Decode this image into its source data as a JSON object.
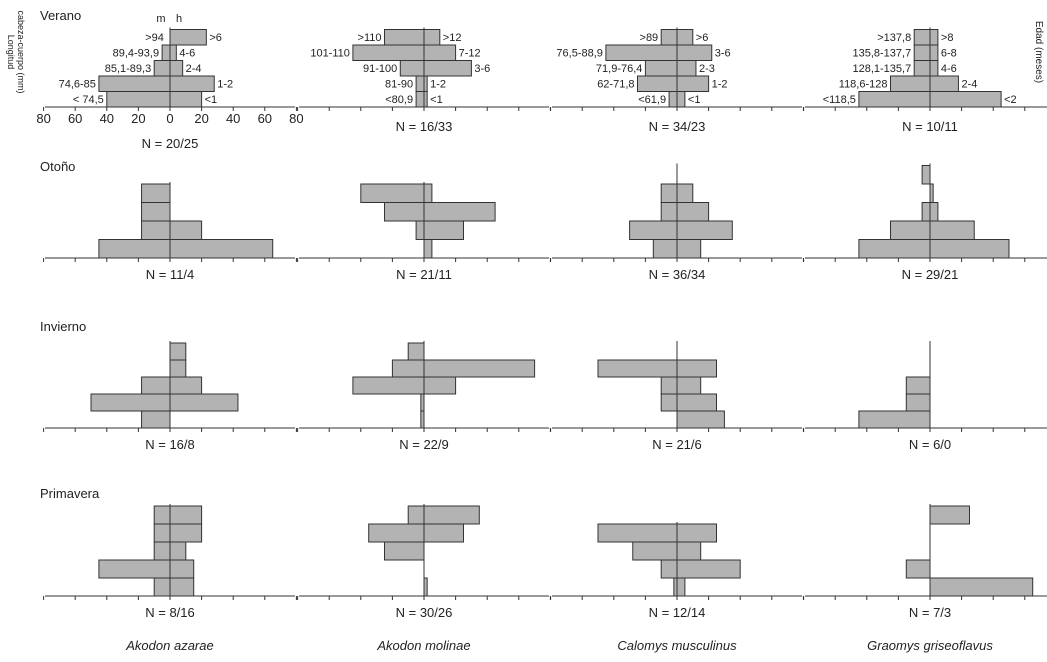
{
  "figure": {
    "y_axis_label_line1": "Longitud",
    "y_axis_label_line2": "cabeza-cuerpo (mm)",
    "right_axis_label": "Edad (meses)",
    "sex_labels": [
      "m",
      "h"
    ],
    "x_tick_labels": [
      "80",
      "60",
      "40",
      "20",
      "0",
      "20",
      "40",
      "60",
      "80"
    ],
    "colors": {
      "bar_fill": "#b3b3b3",
      "bar_stroke": "#333333",
      "axis": "#333333"
    }
  },
  "chart_data": {
    "type": "bar",
    "orientation": "horizontal",
    "description_units": "percentage of males (left) and females (right) per class",
    "xlim": [
      -80,
      80
    ],
    "species": [
      "Akodon azarae",
      "Akodon molinae",
      "Calomys musculinus",
      "Graomys griseoflavus"
    ],
    "seasons": [
      {
        "name": "Verano",
        "panels": [
          {
            "n": "N = 20/25",
            "left_labels": [
              "< 74,5",
              "74,6-85",
              "85,1-89,3",
              "89,4-93,9",
              ">94"
            ],
            "right_labels": [
              "<1",
              "1-2",
              "2-4",
              "4-6",
              ">6"
            ],
            "males": [
              40,
              45,
              10,
              5,
              0
            ],
            "females": [
              20,
              28,
              8,
              4,
              23
            ]
          },
          {
            "n": "N = 16/33",
            "left_labels": [
              "<80,9",
              "81-90",
              "91-100",
              "101-110",
              ">110"
            ],
            "right_labels": [
              "<1",
              "1-2",
              "3-6",
              "7-12",
              ">12"
            ],
            "males": [
              5,
              5,
              15,
              45,
              25
            ],
            "females": [
              2,
              2,
              30,
              20,
              10
            ]
          },
          {
            "n": "N = 34/23",
            "left_labels": [
              "<61,9",
              "62-71,8",
              "71,9-76,4",
              "76,5-88,9",
              ">89"
            ],
            "right_labels": [
              "<1",
              "1-2",
              "2-3",
              "3-6",
              ">6"
            ],
            "males": [
              5,
              25,
              20,
              45,
              10
            ],
            "females": [
              5,
              20,
              12,
              22,
              10
            ]
          },
          {
            "n": "N = 10/11",
            "left_labels": [
              "<118,5",
              "118,6-128",
              "128,1-135,7",
              "135,8-137,7",
              ">137,8"
            ],
            "right_labels": [
              "<2",
              "2-4",
              "4-6",
              "6-8",
              ">8"
            ],
            "males": [
              45,
              25,
              10,
              10,
              10
            ],
            "females": [
              45,
              18,
              5,
              5,
              5
            ]
          }
        ]
      },
      {
        "name": "Otoño",
        "panels": [
          {
            "n": "N = 11/4",
            "males": [
              45,
              18,
              18,
              18
            ],
            "females": [
              65,
              20,
              0,
              0
            ]
          },
          {
            "n": "N = 21/11",
            "males": [
              0,
              5,
              25,
              40
            ],
            "females": [
              5,
              25,
              45,
              5
            ]
          },
          {
            "n": "N = 36/34",
            "males": [
              15,
              30,
              10,
              10,
              0
            ],
            "females": [
              15,
              35,
              20,
              10,
              0
            ]
          },
          {
            "n": "N = 29/21",
            "males": [
              45,
              25,
              5,
              0,
              5
            ],
            "females": [
              50,
              28,
              5,
              2,
              0
            ]
          }
        ]
      },
      {
        "name": "Invierno",
        "panels": [
          {
            "n": "N = 16/8",
            "males": [
              18,
              50,
              18,
              0,
              0
            ],
            "females": [
              0,
              43,
              20,
              10,
              10
            ]
          },
          {
            "n": "N = 22/9",
            "males": [
              2,
              2,
              45,
              20,
              10
            ],
            "females": [
              0,
              0,
              20,
              70,
              0
            ]
          },
          {
            "n": "N = 21/6",
            "males": [
              0,
              10,
              10,
              50,
              0
            ],
            "females": [
              30,
              25,
              15,
              25,
              0
            ]
          },
          {
            "n": "N = 6/0",
            "males": [
              45,
              15,
              15,
              0,
              0
            ],
            "females": [
              0,
              0,
              0,
              0,
              0
            ]
          }
        ]
      },
      {
        "name": "Primavera",
        "panels": [
          {
            "n": "N = 8/16",
            "males": [
              10,
              45,
              10,
              10,
              10
            ],
            "females": [
              15,
              15,
              10,
              20,
              20
            ]
          },
          {
            "n": "N = 30/26",
            "males": [
              0,
              0,
              25,
              35,
              10
            ],
            "females": [
              2,
              0,
              0,
              25,
              35
            ]
          },
          {
            "n": "N = 12/14",
            "males": [
              2,
              10,
              28,
              50
            ],
            "females": [
              5,
              40,
              15,
              25
            ]
          },
          {
            "n": "N = 7/3",
            "males": [
              0,
              15,
              0,
              0,
              0
            ],
            "females": [
              65,
              0,
              0,
              0,
              25
            ]
          }
        ]
      }
    ]
  }
}
